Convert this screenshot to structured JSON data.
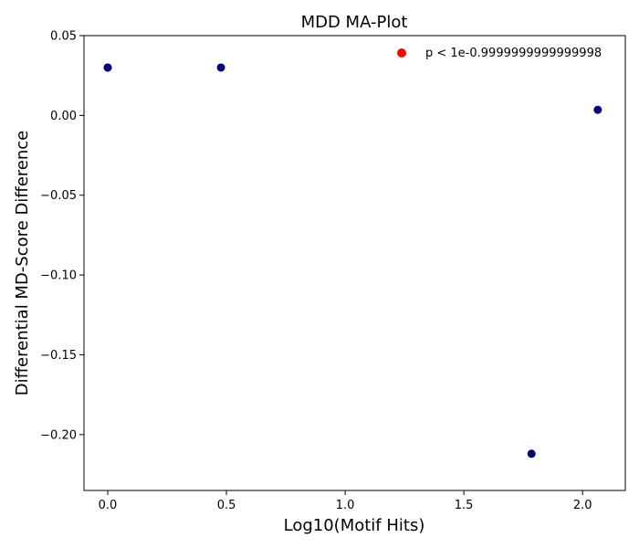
{
  "chart_data": {
    "type": "scatter",
    "title": "MDD MA-Plot",
    "xlabel": "Log10(Motif Hits)",
    "ylabel": "Differential MD-Score Difference",
    "xlim": [
      -0.1,
      2.18
    ],
    "ylim": [
      -0.235,
      0.05
    ],
    "xticks": [
      0.0,
      0.5,
      1.0,
      1.5,
      2.0
    ],
    "xtick_labels": [
      "0.0",
      "0.5",
      "1.0",
      "1.5",
      "2.0"
    ],
    "yticks": [
      0.05,
      0.0,
      -0.05,
      -0.1,
      -0.15,
      -0.2
    ],
    "ytick_labels": [
      "0.05",
      "0.00",
      "−0.05",
      "−0.10",
      "−0.15",
      "−0.20"
    ],
    "grid": false,
    "legend": {
      "position": "top-right",
      "entries": [
        {
          "label": "p < 1e-0.9999999999999998",
          "color": "#ff0000"
        }
      ]
    },
    "series": [
      {
        "color": "#000080",
        "points": [
          {
            "x": 0.0,
            "y": 0.03
          },
          {
            "x": 0.0,
            "y": 0.03
          },
          {
            "x": 0.477,
            "y": 0.03
          },
          {
            "x": 2.064,
            "y": 0.0035
          },
          {
            "x": 1.785,
            "y": -0.212
          }
        ]
      }
    ]
  }
}
